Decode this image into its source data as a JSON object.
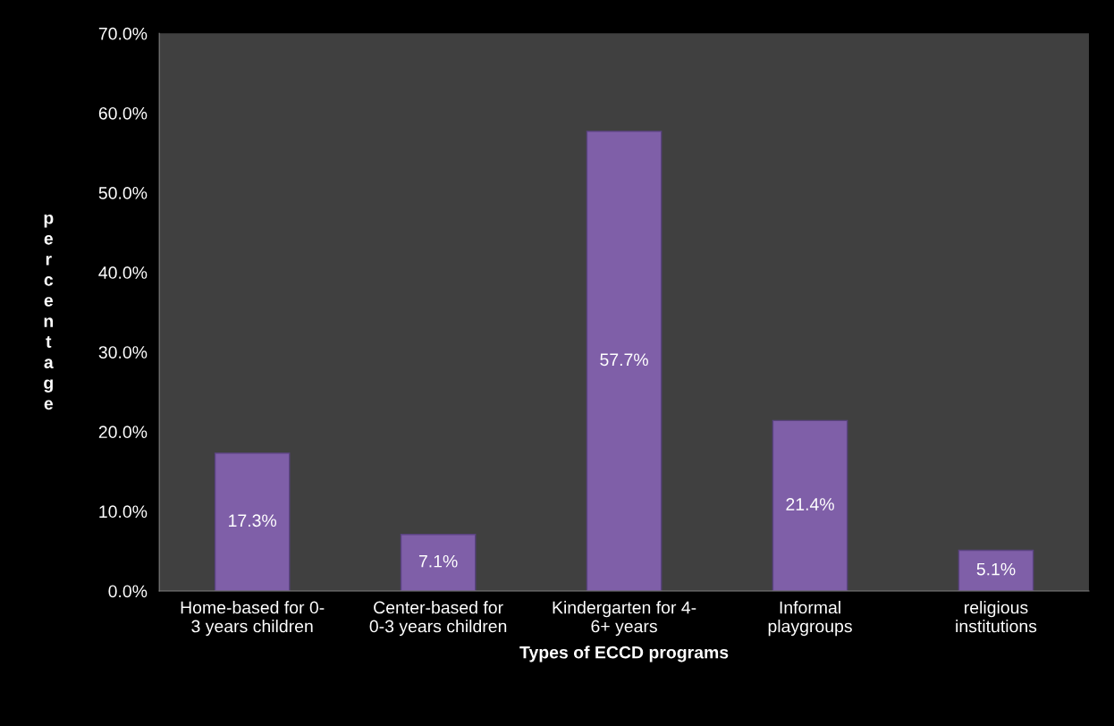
{
  "chart_data": {
    "type": "bar",
    "xlabel": "Types of ECCD programs",
    "ylabel": "percentage",
    "categories": [
      "Home-based for 0-\n3 years children",
      "Center-based for\n0-3 years children",
      "Kindergarten for 4-\n6+ years",
      "Informal\nplaygroups",
      "religious\ninstitutions"
    ],
    "values": [
      17.3,
      7.1,
      57.7,
      21.4,
      5.1
    ],
    "value_labels": [
      "17.3%",
      "7.1%",
      "57.7%",
      "21.4%",
      "5.1%"
    ],
    "color": "#7f5fa8",
    "ylim": [
      0,
      70
    ],
    "yticks": [
      {
        "value": 0,
        "label": "0.0%"
      },
      {
        "value": 10,
        "label": "10.0%"
      },
      {
        "value": 20,
        "label": "20.0%"
      },
      {
        "value": 30,
        "label": "30.0%"
      },
      {
        "value": 40,
        "label": "40.0%"
      },
      {
        "value": 50,
        "label": "50.0%"
      },
      {
        "value": 60,
        "label": "60.0%"
      },
      {
        "value": 70,
        "label": "70.0%"
      }
    ],
    "grid": false,
    "legend": false
  }
}
